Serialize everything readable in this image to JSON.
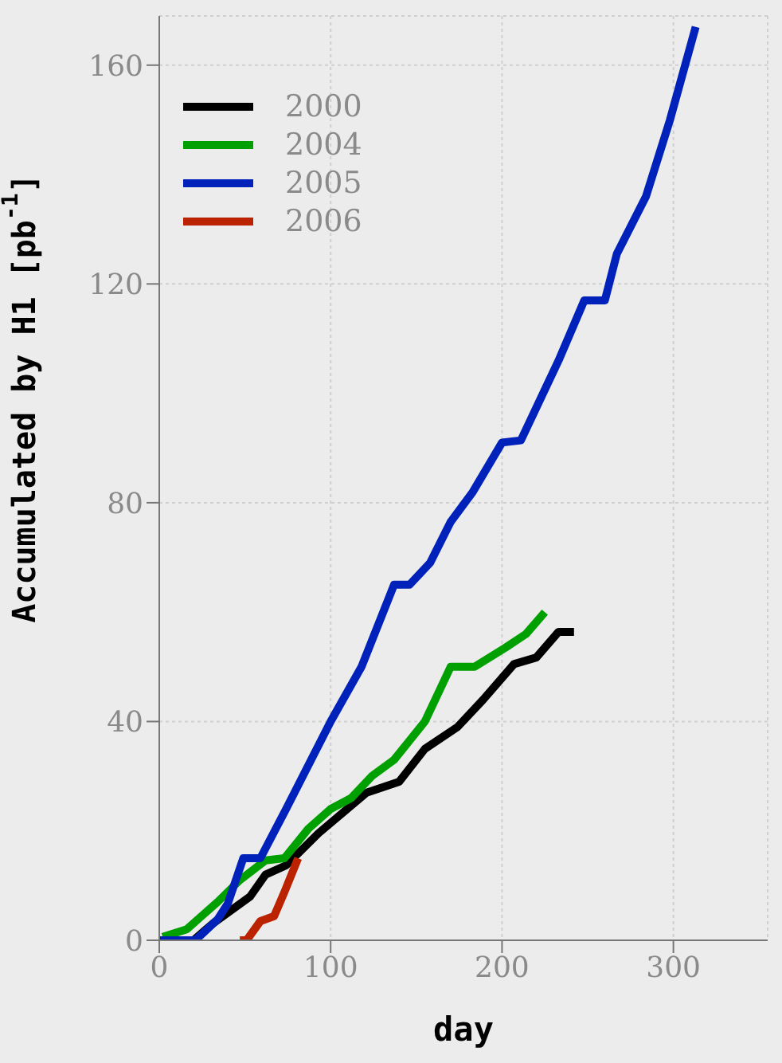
{
  "chart_data": {
    "type": "line",
    "xlabel": "day",
    "ylabel": "Accumulated by H1 [pb$^{-1}$]",
    "xlim": [
      0,
      355
    ],
    "xticks": [
      0,
      100,
      200,
      300
    ],
    "ylim": [
      0,
      169
    ],
    "yticks": [
      0,
      40,
      80,
      120,
      160
    ],
    "grid": true,
    "legend": "top left",
    "line_style": "solid",
    "marker": "none",
    "series": [
      {
        "name": "2000",
        "color": "#000000",
        "x": [
          20,
          31,
          53,
          62,
          74,
          93,
          121,
          140,
          155,
          174,
          189,
          207,
          220,
          233,
          242
        ],
        "values": [
          0,
          3,
          8,
          12,
          13.7,
          19.6,
          27,
          29,
          35,
          39,
          44,
          50.5,
          51.7,
          56.4,
          56.4
        ]
      },
      {
        "name": "2004",
        "color": "#00a000",
        "x": [
          2,
          16,
          34,
          47,
          62,
          73,
          87,
          100,
          112,
          124,
          137,
          155,
          170,
          184,
          202,
          214,
          225
        ],
        "values": [
          0.6,
          2,
          7,
          11,
          14.6,
          15,
          20.4,
          24,
          26,
          30,
          33,
          40,
          50,
          50,
          53.5,
          56,
          60
        ]
      },
      {
        "name": "2005",
        "color": "#0022bb",
        "x": [
          0,
          21,
          34,
          40,
          49,
          59,
          74,
          100,
          118,
          137,
          146,
          158,
          170,
          183,
          200,
          211,
          233,
          248,
          260,
          267,
          284,
          298,
          313
        ],
        "values": [
          0,
          0,
          3.8,
          6.7,
          15,
          15,
          24,
          40,
          50,
          65,
          65,
          69,
          76.5,
          82,
          91,
          91.4,
          106,
          117,
          117,
          125.5,
          136,
          150,
          167
        ]
      },
      {
        "name": "2006",
        "color": "#bb2200",
        "x": [
          47,
          51,
          59,
          67,
          73,
          81
        ],
        "values": [
          0,
          0,
          3.5,
          4.4,
          8.8,
          15
        ]
      }
    ]
  }
}
